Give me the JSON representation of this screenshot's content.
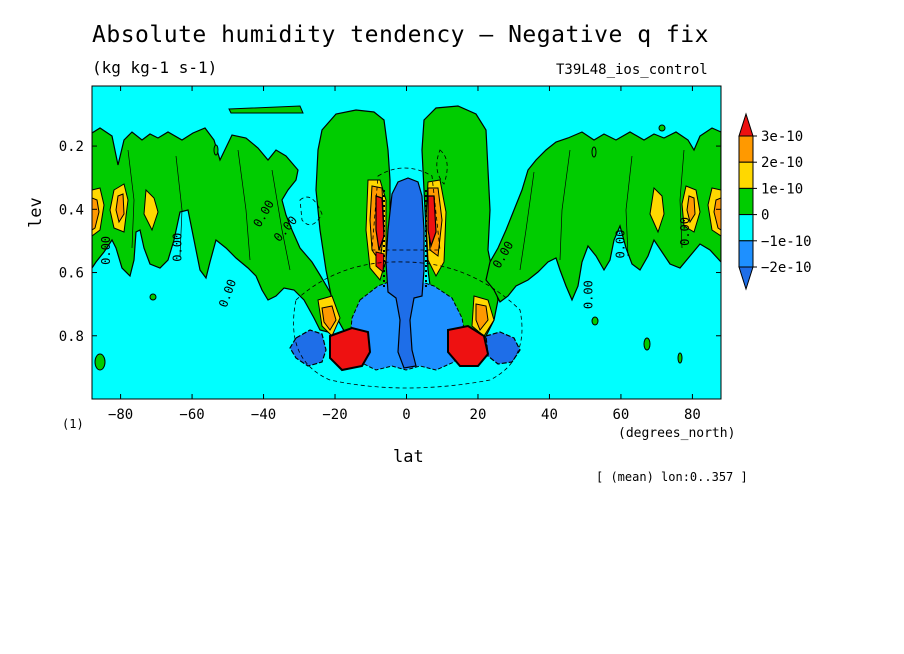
{
  "header": {
    "title": "Absolute humidity tendency — Negative q fix",
    "units": "(kg kg-1 s-1)",
    "run": "T39L48_ios_control"
  },
  "footer": {
    "index": "(1)",
    "x_units": "(degrees_north)",
    "mean_note": "[ (mean) lon:0..357 ]"
  },
  "chart_data": {
    "type": "heatmap",
    "title": "Absolute humidity tendency — Negative q fix",
    "xlabel": "lat",
    "ylabel": "lev",
    "xlim": [
      -88,
      88
    ],
    "ylim": [
      1.0,
      0.01
    ],
    "y_inverted": true,
    "x_ticks": [
      -80,
      -60,
      -40,
      -20,
      0,
      20,
      40,
      60,
      80
    ],
    "x_tick_labels": [
      "−80",
      "−60",
      "−40",
      "−20",
      "0",
      "20",
      "40",
      "60",
      "80"
    ],
    "y_ticks": [
      0.2,
      0.4,
      0.6,
      0.8
    ],
    "y_tick_labels": [
      "0.2",
      "0.4",
      "0.6",
      "0.8"
    ],
    "contour_labels": [
      "0.00"
    ],
    "colorbar": {
      "levels": [
        "3e-10",
        "2e-10",
        "1e-10",
        "0",
        "−1e-10",
        "−2e-10"
      ],
      "colors": [
        "#ff0000",
        "#ff9900",
        "#ffff00",
        "#00cc00",
        "#00ffff",
        "#0077ff"
      ],
      "bins": [
        {
          "range": "> 3e-10",
          "color": "#ee1111"
        },
        {
          "range": "2e-10 to 3e-10",
          "color": "#ff9900"
        },
        {
          "range": "1e-10 to 2e-10",
          "color": "#ffd800"
        },
        {
          "range": "0 to 1e-10",
          "color": "#00cc00"
        },
        {
          "range": "−1e-10 to 0",
          "color": "#00ffff"
        },
        {
          "range": "−2e-10 to −1e-10",
          "color": "#1e90ff"
        },
        {
          "range": "< −2e-10",
          "color": "#1e6ee8"
        }
      ]
    },
    "features": [
      {
        "name": "upper-tropospheric positive band",
        "lat_range": [
          -88,
          88
        ],
        "lev_range": [
          0.13,
          0.62
        ],
        "sign": "positive",
        "level": "0 to 1e-10"
      },
      {
        "name": "equatorial negative column",
        "lat_range": [
          -6,
          6
        ],
        "lev_range": [
          0.28,
          0.88
        ],
        "sign": "negative",
        "level": "< -2e-10"
      },
      {
        "name": "south subtropical maximum",
        "lat_center": -17,
        "lev_center": 0.84,
        "sign": "positive",
        "level": "> 3e-10"
      },
      {
        "name": "north subtropical maximum",
        "lat_center": 17,
        "lev_center": 0.84,
        "sign": "positive",
        "level": "> 3e-10"
      },
      {
        "name": "south upper maximum",
        "lat_center": -8,
        "lev_center": 0.4,
        "sign": "positive",
        "level": "> 3e-10"
      },
      {
        "name": "north upper maximum",
        "lat_center": 8,
        "lev_center": 0.4,
        "sign": "positive",
        "level": "> 3e-10"
      },
      {
        "name": "polar maxima south",
        "lat_center": -85,
        "lev_center": 0.4,
        "sign": "positive",
        "level": "2e-10 to 3e-10"
      },
      {
        "name": "polar maxima north",
        "lat_center": 85,
        "lev_center": 0.4,
        "sign": "positive",
        "level": "2e-10 to 3e-10"
      }
    ]
  }
}
